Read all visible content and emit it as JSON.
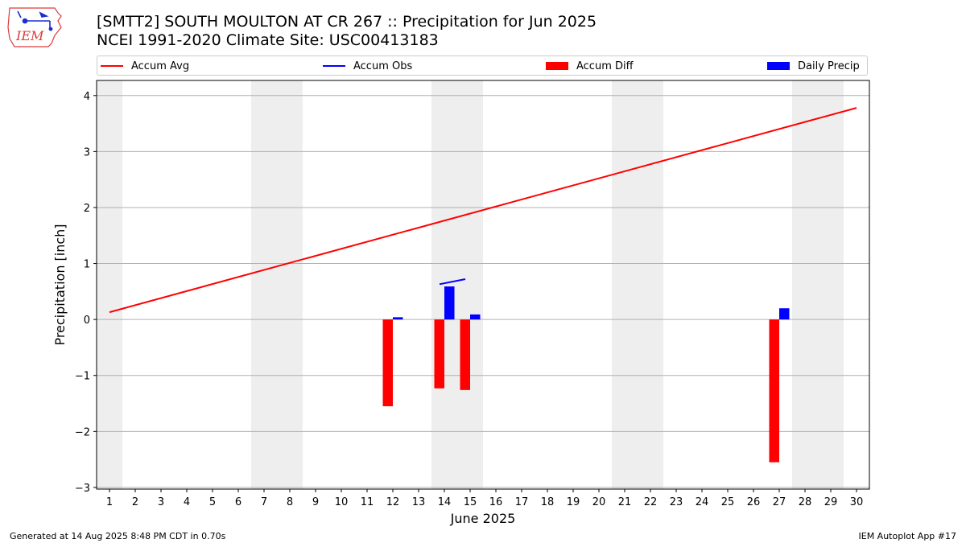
{
  "header": {
    "title_line1": "[SMTT2] SOUTH MOULTON AT CR 267 :: Precipitation for Jun 2025",
    "title_line2": "NCEI 1991-2020 Climate Site: USC00413183",
    "logo_text": "IEM"
  },
  "legend": {
    "items": [
      {
        "label": "Accum Avg",
        "kind": "line",
        "color": "#ff0000"
      },
      {
        "label": "Accum Obs",
        "kind": "line",
        "color": "#0000ff"
      },
      {
        "label": "Accum Diff",
        "kind": "patch",
        "color": "#ff0000"
      },
      {
        "label": "Daily Precip",
        "kind": "patch",
        "color": "#0000ff"
      }
    ]
  },
  "footer": {
    "left": "Generated at 14 Aug 2025 8:48 PM CDT in 0.70s",
    "right": "IEM Autoplot App #17"
  },
  "chart_data": {
    "type": "bar",
    "title": "[SMTT2] SOUTH MOULTON AT CR 267 :: Precipitation for Jun 2025",
    "subtitle": "NCEI 1991-2020 Climate Site: USC00413183",
    "xlabel": "June 2025",
    "ylabel": "Precipitation [inch]",
    "xlim": [
      0.5,
      30.5
    ],
    "ylim": [
      -3.03,
      4.27
    ],
    "yticks": [
      -3,
      -2,
      -1,
      0,
      1,
      2,
      3,
      4
    ],
    "ytick_labels": [
      "−3",
      "−2",
      "−1",
      "0",
      "1",
      "2",
      "3",
      "4"
    ],
    "xticks": [
      1,
      2,
      3,
      4,
      5,
      6,
      7,
      8,
      9,
      10,
      11,
      12,
      13,
      14,
      15,
      16,
      17,
      18,
      19,
      20,
      21,
      22,
      23,
      24,
      25,
      26,
      27,
      28,
      29,
      30
    ],
    "grid": "horizontal",
    "legend_position": "top",
    "weekend_shading": [
      [
        0.5,
        1.5
      ],
      [
        6.5,
        8.5
      ],
      [
        13.5,
        15.5
      ],
      [
        20.5,
        22.5
      ],
      [
        27.5,
        29.5
      ]
    ],
    "accum_avg": {
      "days": [
        1,
        30
      ],
      "values": [
        0.13,
        3.78
      ]
    },
    "accum_obs": {
      "days": [
        14,
        15
      ],
      "values": [
        0.63,
        0.72
      ]
    },
    "accum_diff": {
      "days": [
        12,
        14,
        15,
        27
      ],
      "values": [
        -1.55,
        -1.23,
        -1.26,
        -2.55
      ]
    },
    "daily_precip": {
      "days": [
        12,
        14,
        15,
        27
      ],
      "values": [
        0.04,
        0.59,
        0.09,
        0.2
      ]
    }
  }
}
